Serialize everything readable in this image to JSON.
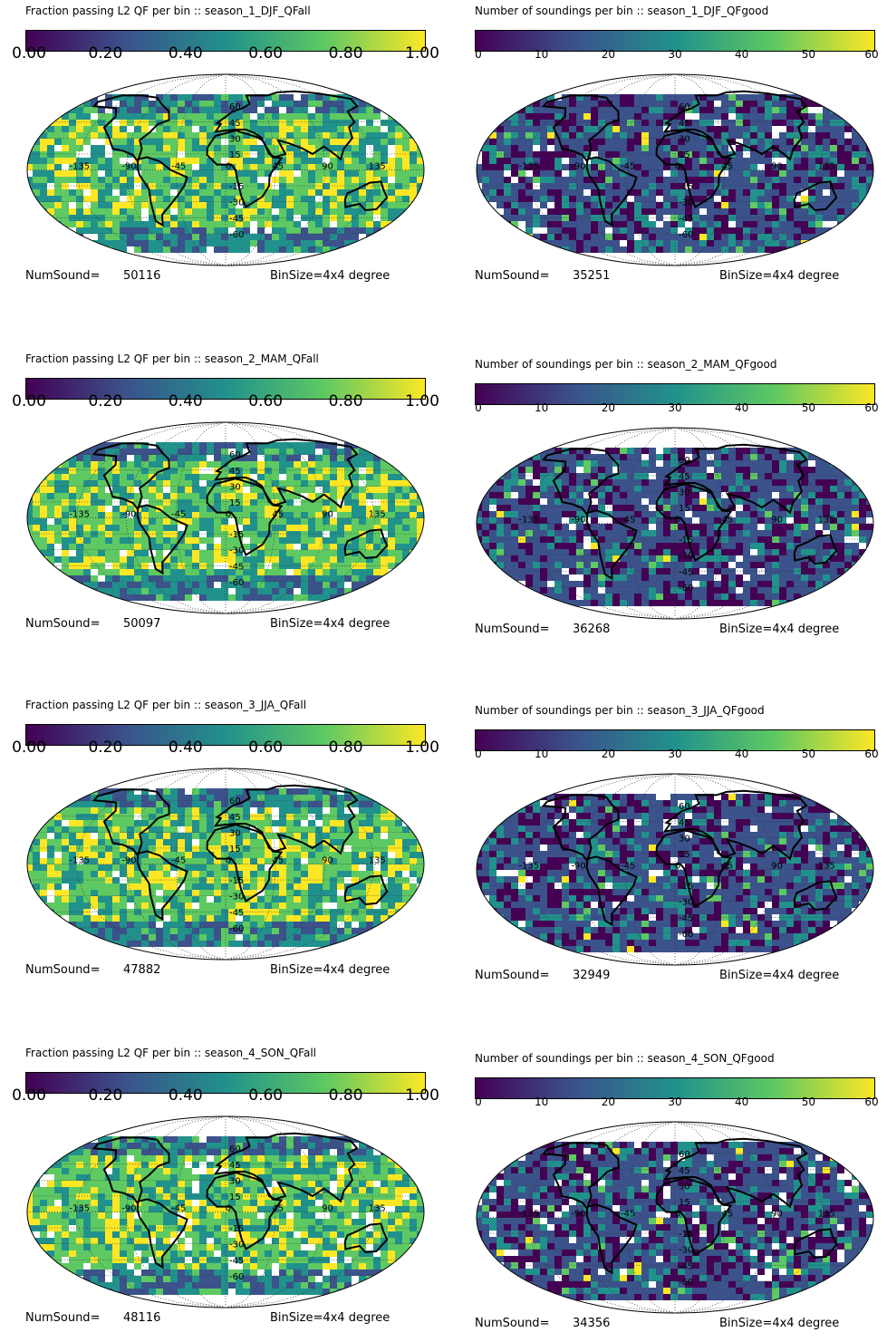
{
  "fraction_ticks": [
    "0.00",
    "0.20",
    "0.40",
    "0.60",
    "0.80",
    "1.00"
  ],
  "count_ticks": [
    "0",
    "10",
    "20",
    "30",
    "40",
    "50",
    "60"
  ],
  "lon_labels": [
    "-135",
    "-90",
    "-45",
    "0",
    "45",
    "90",
    "135"
  ],
  "lat_labels": [
    "60",
    "45",
    "30",
    "15",
    "-15",
    "-30",
    "-45",
    "-60"
  ],
  "numsound_label": "NumSound=",
  "binsize_label": "BinSize=4x4 degree",
  "panels": [
    {
      "title": "Fraction passing L2 QF per bin :: season_1_DJF_QFall",
      "numsound": "50116",
      "kind": "fraction"
    },
    {
      "title": "Number of soundings per bin :: season_1_DJF_QFgood",
      "numsound": "35251",
      "kind": "count"
    },
    {
      "title": "Fraction passing L2 QF per bin :: season_2_MAM_QFall",
      "numsound": "50097",
      "kind": "fraction"
    },
    {
      "title": "Number of soundings per bin :: season_2_MAM_QFgood",
      "numsound": "36268",
      "kind": "count"
    },
    {
      "title": "Fraction passing L2 QF per bin :: season_3_JJA_QFall",
      "numsound": "47882",
      "kind": "fraction"
    },
    {
      "title": "Number of soundings per bin :: season_3_JJA_QFgood",
      "numsound": "32949",
      "kind": "count"
    },
    {
      "title": "Fraction passing L2 QF per bin :: season_4_SON_QFall",
      "numsound": "48116",
      "kind": "fraction"
    },
    {
      "title": "Number of soundings per bin :: season_4_SON_QFgood",
      "numsound": "34356",
      "kind": "count"
    }
  ],
  "colormap": [
    "#440154",
    "#3b528b",
    "#21918c",
    "#5ec962",
    "#fde725"
  ]
}
